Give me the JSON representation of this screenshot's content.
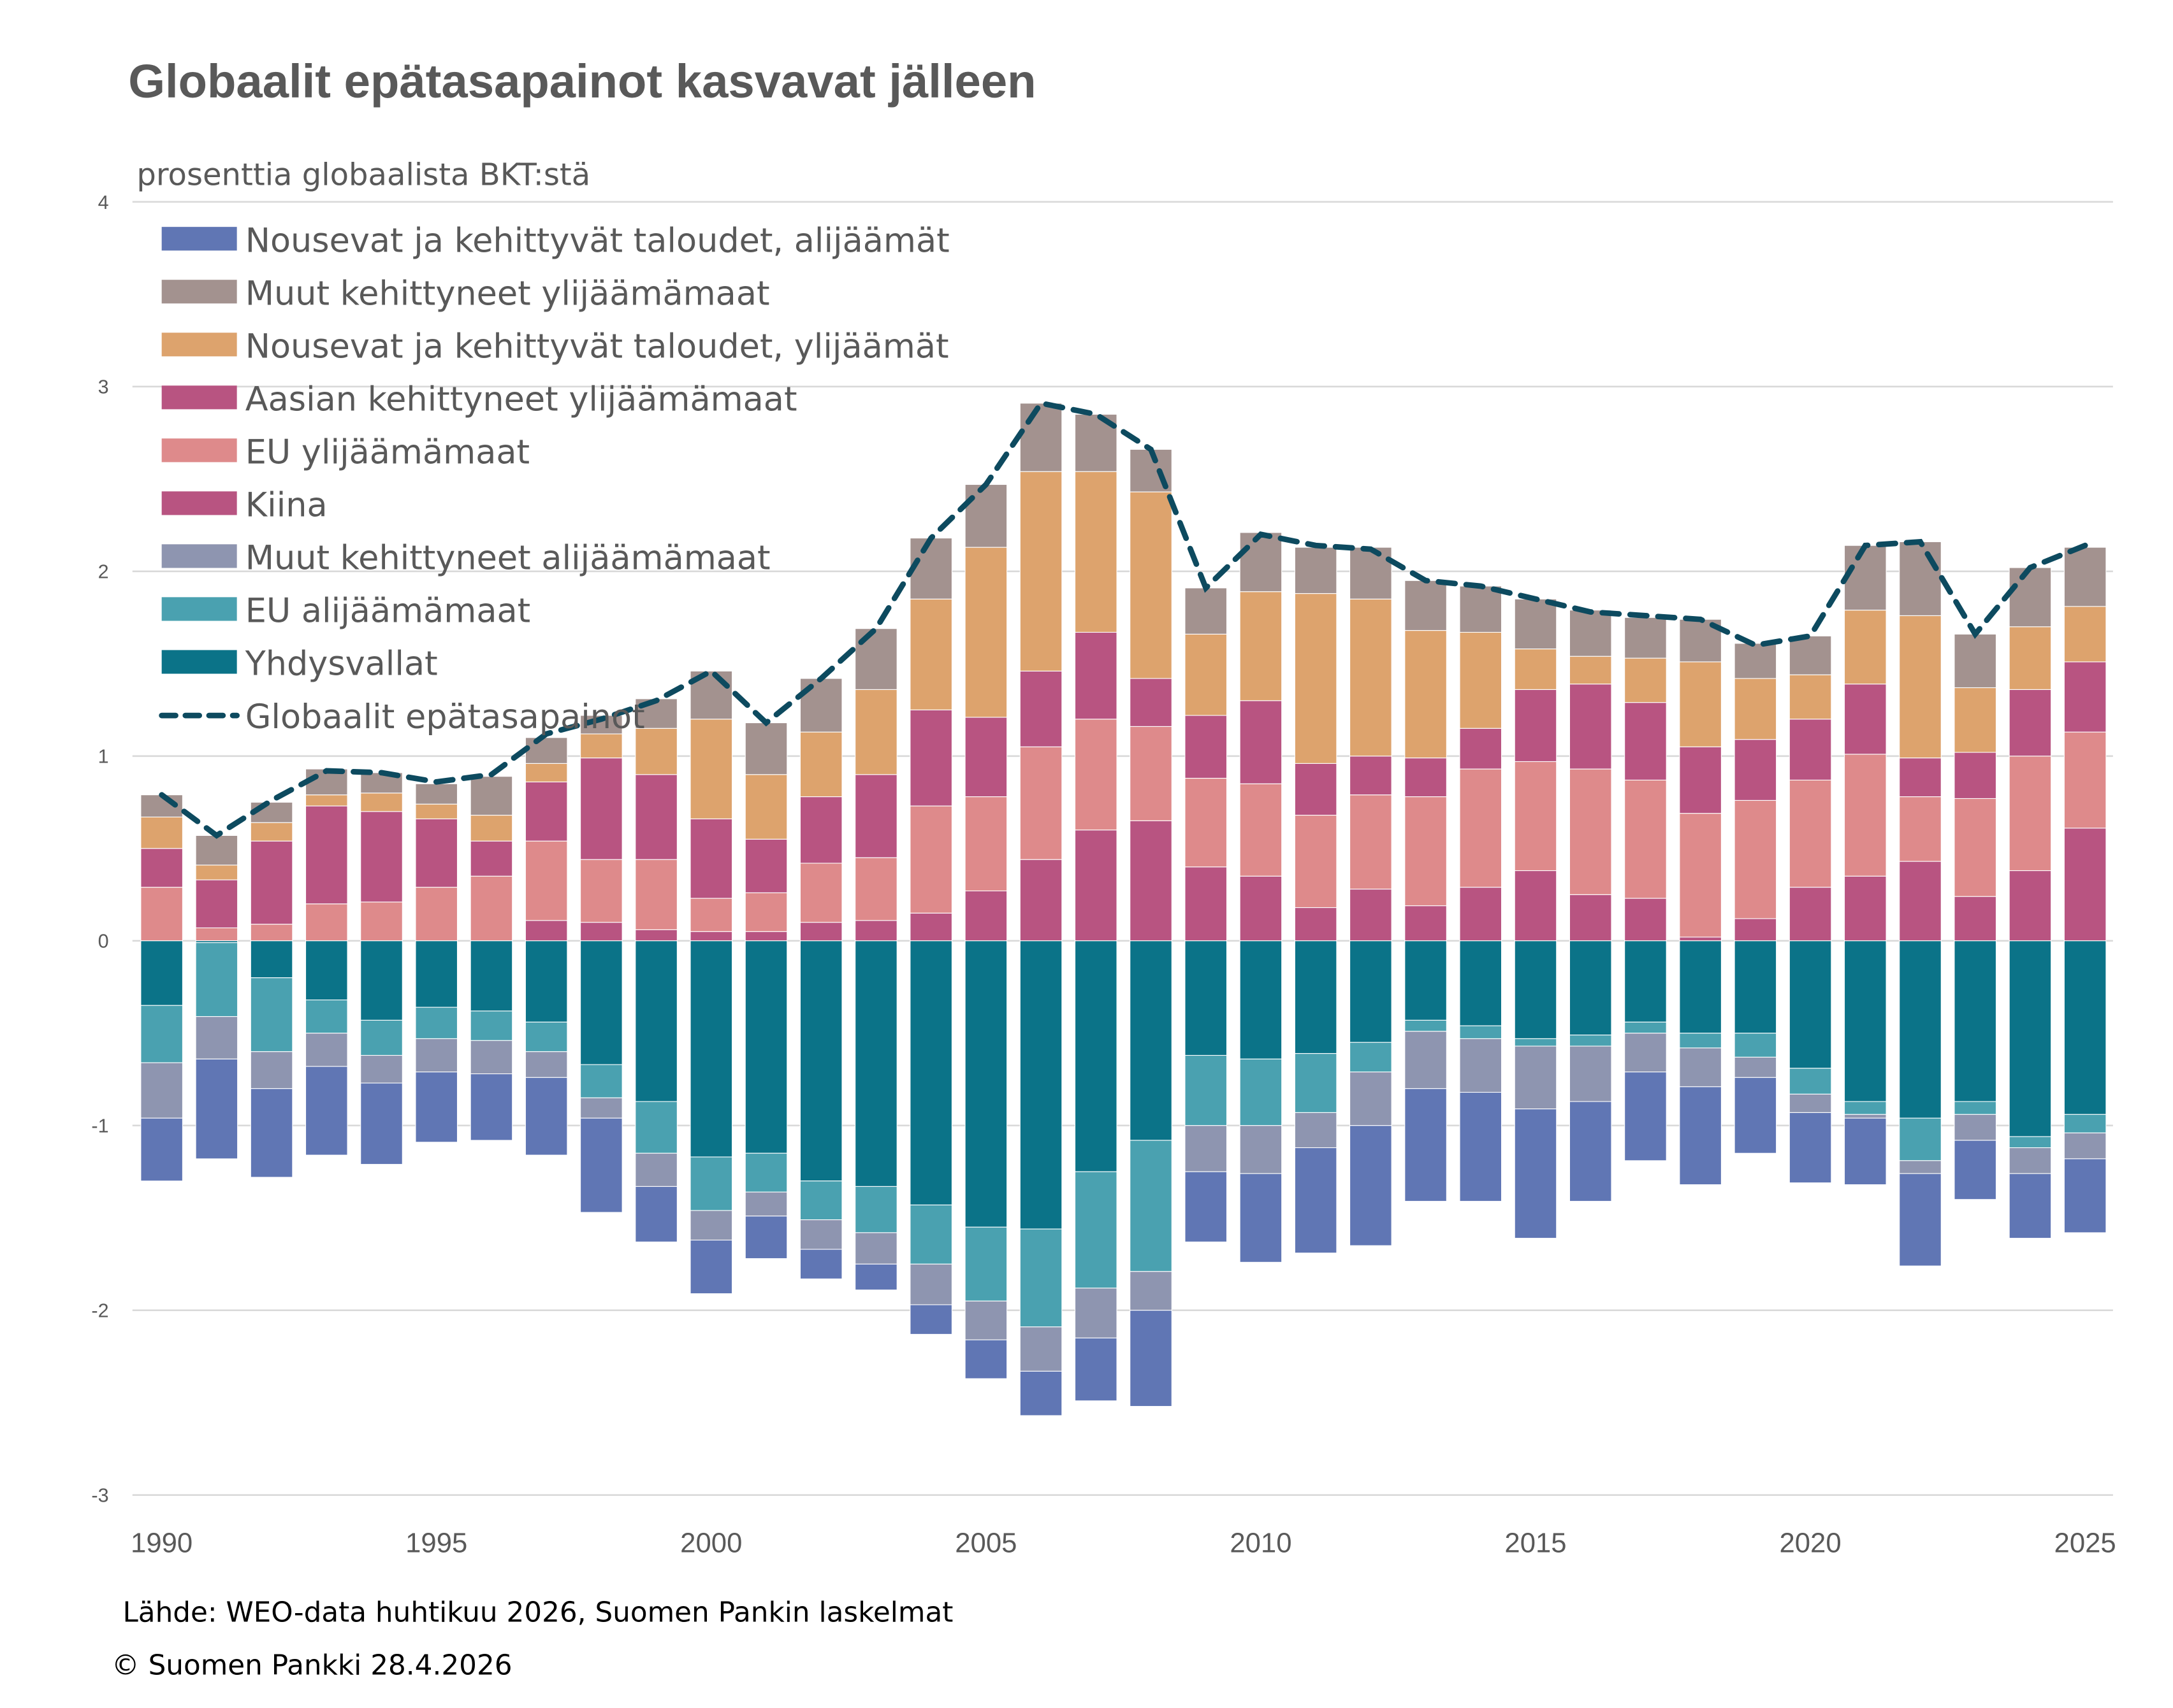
{
  "chart_data": {
    "type": "bar",
    "stacked": true,
    "title": "Globaalit epätasapainot kasvavat jälleen",
    "ylabel": "prosenttia globaalista BKT:stä",
    "xlabel": "",
    "ylim": [
      -3,
      4
    ],
    "yticks": [
      "-3",
      "-2",
      "-1",
      "0",
      "1",
      "2",
      "3",
      "4"
    ],
    "xticks": [
      "1990",
      "1995",
      "2000",
      "2005",
      "2010",
      "2015",
      "2020",
      "2025"
    ],
    "grid": true,
    "legend_position": "top-left",
    "x": [
      1990,
      1991,
      1992,
      1993,
      1994,
      1995,
      1996,
      1997,
      1998,
      1999,
      2000,
      2001,
      2002,
      2003,
      2004,
      2005,
      2006,
      2007,
      2008,
      2009,
      2010,
      2011,
      2012,
      2013,
      2014,
      2015,
      2016,
      2017,
      2018,
      2019,
      2020,
      2021,
      2022,
      2023,
      2024,
      2025
    ],
    "series": [
      {
        "name": "Kiina",
        "color": "#b85481",
        "values": [
          0,
          0,
          0,
          0,
          0,
          0,
          0,
          0.11,
          0.1,
          0.06,
          0.05,
          0.05,
          0.1,
          0.11,
          0.15,
          0.27,
          0.44,
          0.6,
          0.65,
          0.4,
          0.35,
          0.18,
          0.28,
          0.19,
          0.29,
          0.38,
          0.25,
          0.23,
          0.02,
          0.12,
          0.29,
          0.35,
          0.43,
          0.24,
          0.38,
          0.61
        ]
      },
      {
        "name": "EU ylijäämämaat",
        "color": "#de8a8b",
        "values": [
          0.29,
          0.07,
          0.09,
          0.2,
          0.21,
          0.29,
          0.35,
          0.43,
          0.34,
          0.38,
          0.18,
          0.21,
          0.32,
          0.34,
          0.58,
          0.51,
          0.61,
          0.6,
          0.51,
          0.48,
          0.5,
          0.5,
          0.51,
          0.59,
          0.64,
          0.59,
          0.68,
          0.64,
          0.67,
          0.64,
          0.58,
          0.66,
          0.35,
          0.53,
          0.62,
          0.52
        ]
      },
      {
        "name": "Aasian kehittyneet ylijäämämaat",
        "color": "#b85481",
        "values": [
          0.21,
          0.26,
          0.45,
          0.53,
          0.49,
          0.37,
          0.19,
          0.32,
          0.55,
          0.46,
          0.43,
          0.29,
          0.36,
          0.45,
          0.52,
          0.43,
          0.41,
          0.47,
          0.26,
          0.34,
          0.45,
          0.28,
          0.21,
          0.21,
          0.22,
          0.39,
          0.46,
          0.42,
          0.36,
          0.33,
          0.33,
          0.38,
          0.21,
          0.25,
          0.36,
          0.38
        ]
      },
      {
        "name": "Nousevat ja kehittyvät taloudet, ylijäämät",
        "color": "#dda36d",
        "values": [
          0.17,
          0.08,
          0.1,
          0.06,
          0.1,
          0.08,
          0.14,
          0.1,
          0.13,
          0.25,
          0.54,
          0.35,
          0.35,
          0.46,
          0.6,
          0.92,
          1.08,
          0.87,
          1.01,
          0.44,
          0.59,
          0.92,
          0.85,
          0.69,
          0.52,
          0.22,
          0.15,
          0.24,
          0.46,
          0.33,
          0.24,
          0.4,
          0.77,
          0.35,
          0.34,
          0.3
        ]
      },
      {
        "name": "Muut kehittyneet ylijäämämaat",
        "color": "#a3928f",
        "values": [
          0.12,
          0.16,
          0.11,
          0.14,
          0.11,
          0.11,
          0.21,
          0.14,
          0.1,
          0.16,
          0.26,
          0.28,
          0.29,
          0.33,
          0.33,
          0.34,
          0.37,
          0.31,
          0.23,
          0.25,
          0.32,
          0.25,
          0.28,
          0.27,
          0.25,
          0.27,
          0.25,
          0.22,
          0.23,
          0.19,
          0.21,
          0.35,
          0.4,
          0.29,
          0.32,
          0.32
        ]
      },
      {
        "name": "Yhdysvallat",
        "color": "#0b7388",
        "values": [
          -0.35,
          -0.01,
          -0.2,
          -0.32,
          -0.43,
          -0.36,
          -0.38,
          -0.44,
          -0.67,
          -0.87,
          -1.17,
          -1.15,
          -1.3,
          -1.33,
          -1.43,
          -1.55,
          -1.56,
          -1.25,
          -1.08,
          -0.62,
          -0.64,
          -0.61,
          -0.55,
          -0.43,
          -0.46,
          -0.53,
          -0.51,
          -0.44,
          -0.5,
          -0.5,
          -0.69,
          -0.87,
          -0.96,
          -0.87,
          -1.06,
          -0.94
        ]
      },
      {
        "name": "EU alijäämämaat",
        "color": "#4aa1b0",
        "values": [
          -0.31,
          -0.4,
          -0.4,
          -0.18,
          -0.19,
          -0.17,
          -0.16,
          -0.16,
          -0.18,
          -0.28,
          -0.29,
          -0.21,
          -0.21,
          -0.25,
          -0.32,
          -0.4,
          -0.53,
          -0.63,
          -0.71,
          -0.38,
          -0.36,
          -0.32,
          -0.16,
          -0.06,
          -0.07,
          -0.04,
          -0.06,
          -0.06,
          -0.08,
          -0.13,
          -0.14,
          -0.07,
          -0.23,
          -0.07,
          -0.06,
          -0.1
        ]
      },
      {
        "name": "Muut kehittyneet alijäämämaat",
        "color": "#8e95b0",
        "values": [
          -0.3,
          -0.23,
          -0.2,
          -0.18,
          -0.15,
          -0.18,
          -0.18,
          -0.14,
          -0.11,
          -0.18,
          -0.16,
          -0.13,
          -0.16,
          -0.17,
          -0.22,
          -0.21,
          -0.24,
          -0.27,
          -0.21,
          -0.25,
          -0.26,
          -0.19,
          -0.29,
          -0.31,
          -0.29,
          -0.34,
          -0.3,
          -0.21,
          -0.21,
          -0.11,
          -0.1,
          -0.02,
          -0.07,
          -0.14,
          -0.14,
          -0.14
        ]
      },
      {
        "name": "Nousevat ja kehittyvät taloudet, alijäämät",
        "color": "#6076b4",
        "values": [
          -0.34,
          -0.54,
          -0.48,
          -0.48,
          -0.44,
          -0.38,
          -0.36,
          -0.42,
          -0.51,
          -0.3,
          -0.29,
          -0.23,
          -0.16,
          -0.14,
          -0.16,
          -0.21,
          -0.24,
          -0.34,
          -0.52,
          -0.38,
          -0.48,
          -0.57,
          -0.65,
          -0.61,
          -0.59,
          -0.7,
          -0.54,
          -0.48,
          -0.53,
          -0.41,
          -0.38,
          -0.36,
          -0.5,
          -0.32,
          -0.35,
          -0.4
        ]
      }
    ],
    "line": {
      "name": "Globaalit epätasapainot",
      "color": "#0d4a5f",
      "style": "dashed",
      "values": [
        0.79,
        0.57,
        0.76,
        0.92,
        0.91,
        0.86,
        0.9,
        1.12,
        1.2,
        1.3,
        1.46,
        1.18,
        1.42,
        1.69,
        2.18,
        2.47,
        2.91,
        2.85,
        2.66,
        1.91,
        2.2,
        2.14,
        2.12,
        1.95,
        1.92,
        1.85,
        1.78,
        1.76,
        1.74,
        1.6,
        1.65,
        2.14,
        2.16,
        1.66,
        2.02,
        2.14
      ]
    },
    "legend_order": [
      "Nousevat ja kehittyvät taloudet, alijäämät",
      "Muut kehittyneet ylijäämämaat",
      "Nousevat ja kehittyvät taloudet, ylijäämät",
      "Aasian kehittyneet ylijäämämaat",
      "EU ylijäämämaat",
      "Kiina",
      "Muut kehittyneet alijäämämaat",
      "EU alijäämämaat",
      "Yhdysvallat",
      "Globaalit epätasapainot"
    ]
  },
  "footer": {
    "source": "Lähde: WEO-data huhtikuu 2026, Suomen Pankin laskelmat",
    "copyright": "© Suomen Pankki 28.4.2026"
  }
}
